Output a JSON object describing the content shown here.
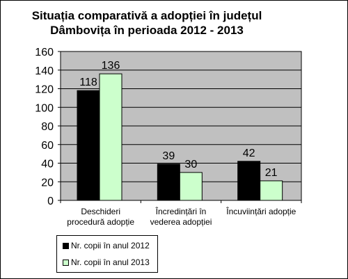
{
  "chart_data": {
    "type": "bar",
    "title_lines": [
      "Situația comparativă a adopției în județul",
      "Dâmbovița în perioada 2012 - 2013"
    ],
    "categories": [
      [
        "Deschideri",
        "procedură adopție"
      ],
      [
        "Încredințări în",
        "vederea adopției"
      ],
      [
        "Încuviințări adopție"
      ]
    ],
    "series": [
      {
        "name": "Nr. copii în anul 2012",
        "values": [
          118,
          39,
          42
        ],
        "color": "#000000"
      },
      {
        "name": "Nr. copii în anul 2013",
        "values": [
          136,
          30,
          21
        ],
        "color": "#ccffcc"
      }
    ],
    "ylim": [
      0,
      160
    ],
    "yticks": [
      "0",
      "20",
      "40",
      "60",
      "80",
      "100",
      "120",
      "140",
      "160"
    ],
    "grid": true,
    "plot_background": "#c0c0c0",
    "legend_placement": "bottom-left"
  }
}
